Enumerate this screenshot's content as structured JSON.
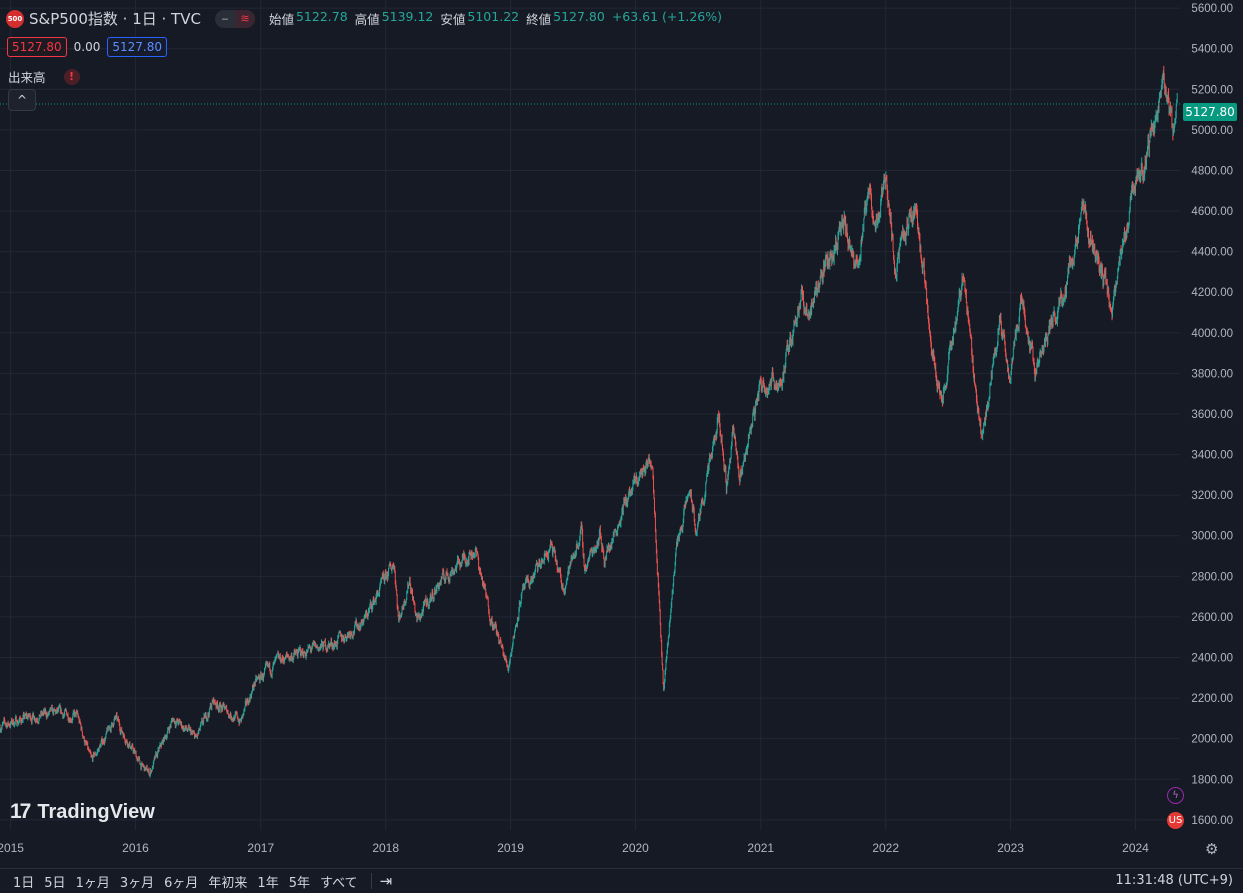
{
  "header": {
    "symbol_badge": "500",
    "title": "S&P500指数 · 1日 · TVC",
    "pill_left": "‒",
    "pill_right": "≋",
    "ohlc": {
      "open_label": "始値",
      "open": "5122.78",
      "high_label": "高値",
      "high": "5139.12",
      "low_label": "安値",
      "low": "5101.22",
      "close_label": "終値",
      "close": "5127.80",
      "change": "+63.61 (+1.26%)"
    },
    "bid": "5127.80",
    "spread": "0.00",
    "ask": "5127.80",
    "volume_label": "出来高",
    "warn_icon": "!",
    "collapse_icon": "^"
  },
  "last_price_tag": "5127.80",
  "watermark": {
    "mark": "17",
    "text": "TradingView"
  },
  "side_icons": {
    "bolt": "ϟ",
    "flag": "US"
  },
  "settings_icon": "⚙",
  "bottom": {
    "ranges": [
      "1日",
      "5日",
      "1ヶ月",
      "3ヶ月",
      "6ヶ月",
      "年初来",
      "1年",
      "5年",
      "すべて"
    ],
    "goto_icon": "⇥",
    "time": "11:31:48 (UTC+9)"
  },
  "colors": {
    "background": "#161a25",
    "grid": "#232734",
    "up": "#26a69a",
    "down": "#ef5350",
    "axis_text": "#b2b5be",
    "price_line": "#089981"
  },
  "chart_data": {
    "type": "line",
    "style": "candlestick",
    "title": "S&P500指数 · 1日 · TVC",
    "xlabel": "",
    "ylabel": "",
    "x_ticks": [
      "2015",
      "2016",
      "2017",
      "2018",
      "2019",
      "2020",
      "2021",
      "2022",
      "2023",
      "2024"
    ],
    "y_ticks": [
      "1600.00",
      "1800.00",
      "2000.00",
      "2200.00",
      "2400.00",
      "2600.00",
      "2800.00",
      "3000.00",
      "3200.00",
      "3400.00",
      "3600.00",
      "3800.00",
      "4000.00",
      "4200.00",
      "4400.00",
      "4600.00",
      "4800.00",
      "5000.00",
      "5200.00",
      "5400.00",
      "5600.00"
    ],
    "ylim": [
      1550,
      5640
    ],
    "xlim": [
      "2014-12-01",
      "2024-05-10"
    ],
    "last_price": 5127.8,
    "grid": true,
    "series": [
      {
        "x": [
          "2014-12-01",
          "2015-03-01",
          "2015-05-20",
          "2015-07-15",
          "2015-08-25",
          "2015-11-03",
          "2016-01-20",
          "2016-02-11",
          "2016-04-20",
          "2016-06-27",
          "2016-08-15",
          "2016-11-04",
          "2016-12-13",
          "2017-03-01",
          "2017-06-01",
          "2017-08-10",
          "2017-11-01",
          "2018-01-26",
          "2018-02-08",
          "2018-03-12",
          "2018-04-02",
          "2018-06-12",
          "2018-08-29",
          "2018-09-20",
          "2018-10-29",
          "2018-12-24",
          "2019-01-31",
          "2019-04-30",
          "2019-06-03",
          "2019-07-26",
          "2019-08-05",
          "2019-09-19",
          "2019-10-03",
          "2019-11-29",
          "2020-01-15",
          "2020-02-19",
          "2020-03-23",
          "2020-04-29",
          "2020-06-08",
          "2020-06-26",
          "2020-09-02",
          "2020-09-23",
          "2020-10-12",
          "2020-10-30",
          "2020-12-31",
          "2021-03-04",
          "2021-04-30",
          "2021-05-12",
          "2021-06-30",
          "2021-09-02",
          "2021-10-04",
          "2021-11-18",
          "2021-12-01",
          "2022-01-03",
          "2022-01-27",
          "2022-03-29",
          "2022-05-20",
          "2022-06-16",
          "2022-08-16",
          "2022-09-30",
          "2022-10-12",
          "2022-11-30",
          "2022-12-28",
          "2023-02-02",
          "2023-03-13",
          "2023-05-31",
          "2023-07-31",
          "2023-10-27",
          "2023-12-29",
          "2024-01-31",
          "2024-03-28",
          "2024-04-19",
          "2024-05-03"
        ],
        "values": [
          2060,
          2110,
          2125,
          2110,
          1885,
          2100,
          1860,
          1830,
          2100,
          2000,
          2185,
          2085,
          2270,
          2390,
          2440,
          2475,
          2590,
          2873,
          2580,
          2790,
          2580,
          2780,
          2905,
          2930,
          2640,
          2350,
          2700,
          2945,
          2740,
          3020,
          2840,
          3010,
          2885,
          3150,
          3300,
          3386,
          2240,
          2940,
          3230,
          3010,
          3580,
          3240,
          3530,
          3270,
          3750,
          3770,
          4210,
          4060,
          4300,
          4530,
          4300,
          4705,
          4510,
          4800,
          4330,
          4630,
          3900,
          3660,
          4300,
          3580,
          3490,
          4080,
          3780,
          4180,
          3810,
          4180,
          4590,
          4120,
          4770,
          4850,
          5260,
          4960,
          5127.8
        ]
      }
    ]
  }
}
